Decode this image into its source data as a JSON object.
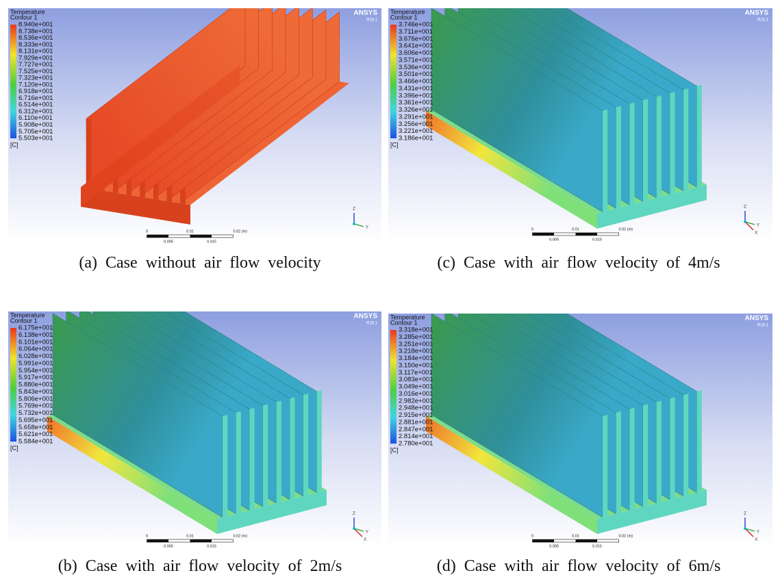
{
  "panels": [
    {
      "legend_title": "Temperature",
      "legend_subtitle": "Contour 1",
      "legend_values": [
        "8.940e+001",
        "8.738e+001",
        "8.536e+001",
        "8.333e+001",
        "8.131e+001",
        "7.929e+001",
        "7.727e+001",
        "7.525e+001",
        "7.323e+001",
        "7.120e+001",
        "6.918e+001",
        "6.716e+001",
        "6.514e+001",
        "6.312e+001",
        "6.110e+001",
        "5.908e+001",
        "5.705e+001",
        "5.503e+001"
      ],
      "legend_unit": "[C]",
      "brand": "ANSYS",
      "version": "R16.1",
      "scale_labels": [
        "0",
        "0.01",
        "0.02 (m)",
        "0.005",
        "0.015"
      ],
      "axes": [
        "Z",
        "Y"
      ],
      "caption": "(a) Case without air flow velocity"
    },
    {
      "legend_title": "Temperature",
      "legend_subtitle": "Contour 1",
      "legend_values": [
        "3.746e+001",
        "3.711e+001",
        "3.676e+001",
        "3.641e+001",
        "3.606e+001",
        "3.571e+001",
        "3.536e+001",
        "3.501e+001",
        "3.466e+001",
        "3.431e+001",
        "3.396e+001",
        "3.361e+001",
        "3.326e+001",
        "3.291e+001",
        "3.256e+001",
        "3.221e+001",
        "3.186e+001"
      ],
      "legend_unit": "[C]",
      "brand": "ANSYS",
      "version": "R16.1",
      "scale_labels": [
        "0",
        "0.01",
        "0.02 (m)",
        "0.005",
        "0.015"
      ],
      "axes": [
        "Z",
        "Y",
        "X"
      ],
      "caption": "(c) Case with air flow velocity of 4m/s"
    },
    {
      "legend_title": "Temperature",
      "legend_subtitle": "Contour 1",
      "legend_values": [
        "6.175e+001",
        "6.138e+001",
        "6.101e+001",
        "6.064e+001",
        "6.028e+001",
        "5.991e+001",
        "5.954e+001",
        "5.917e+001",
        "5.880e+001",
        "5.843e+001",
        "5.806e+001",
        "5.769e+001",
        "5.732e+001",
        "5.695e+001",
        "5.658e+001",
        "5.621e+001",
        "5.584e+001"
      ],
      "legend_unit": "[C]",
      "brand": "ANSYS",
      "version": "R16.1",
      "scale_labels": [
        "0",
        "0.01",
        "0.02 (m)",
        "0.005",
        "0.015"
      ],
      "axes": [
        "Z",
        "Y",
        "X"
      ],
      "caption": "(b) Case with air flow velocity of 2m/s"
    },
    {
      "legend_title": "Temperature",
      "legend_subtitle": "Contour 1",
      "legend_values": [
        "3.318e+001",
        "3.285e+001",
        "3.251e+001",
        "3.218e+001",
        "3.184e+001",
        "3.150e+001",
        "3.117e+001",
        "3.083e+001",
        "3.049e+001",
        "3.016e+001",
        "2.982e+001",
        "2.948e+001",
        "2.915e+001",
        "2.881e+001",
        "2.847e+001",
        "2.814e+001",
        "2.780e+001"
      ],
      "legend_unit": "[C]",
      "brand": "ANSYS",
      "version": "R16.1",
      "scale_labels": [
        "0",
        "0.01",
        "0.02 (m)",
        "0.005",
        "0.015"
      ],
      "axes": [
        "Z",
        "Y",
        "X"
      ],
      "caption": "(d) Case with air flow velocity of 6m/s"
    }
  ]
}
